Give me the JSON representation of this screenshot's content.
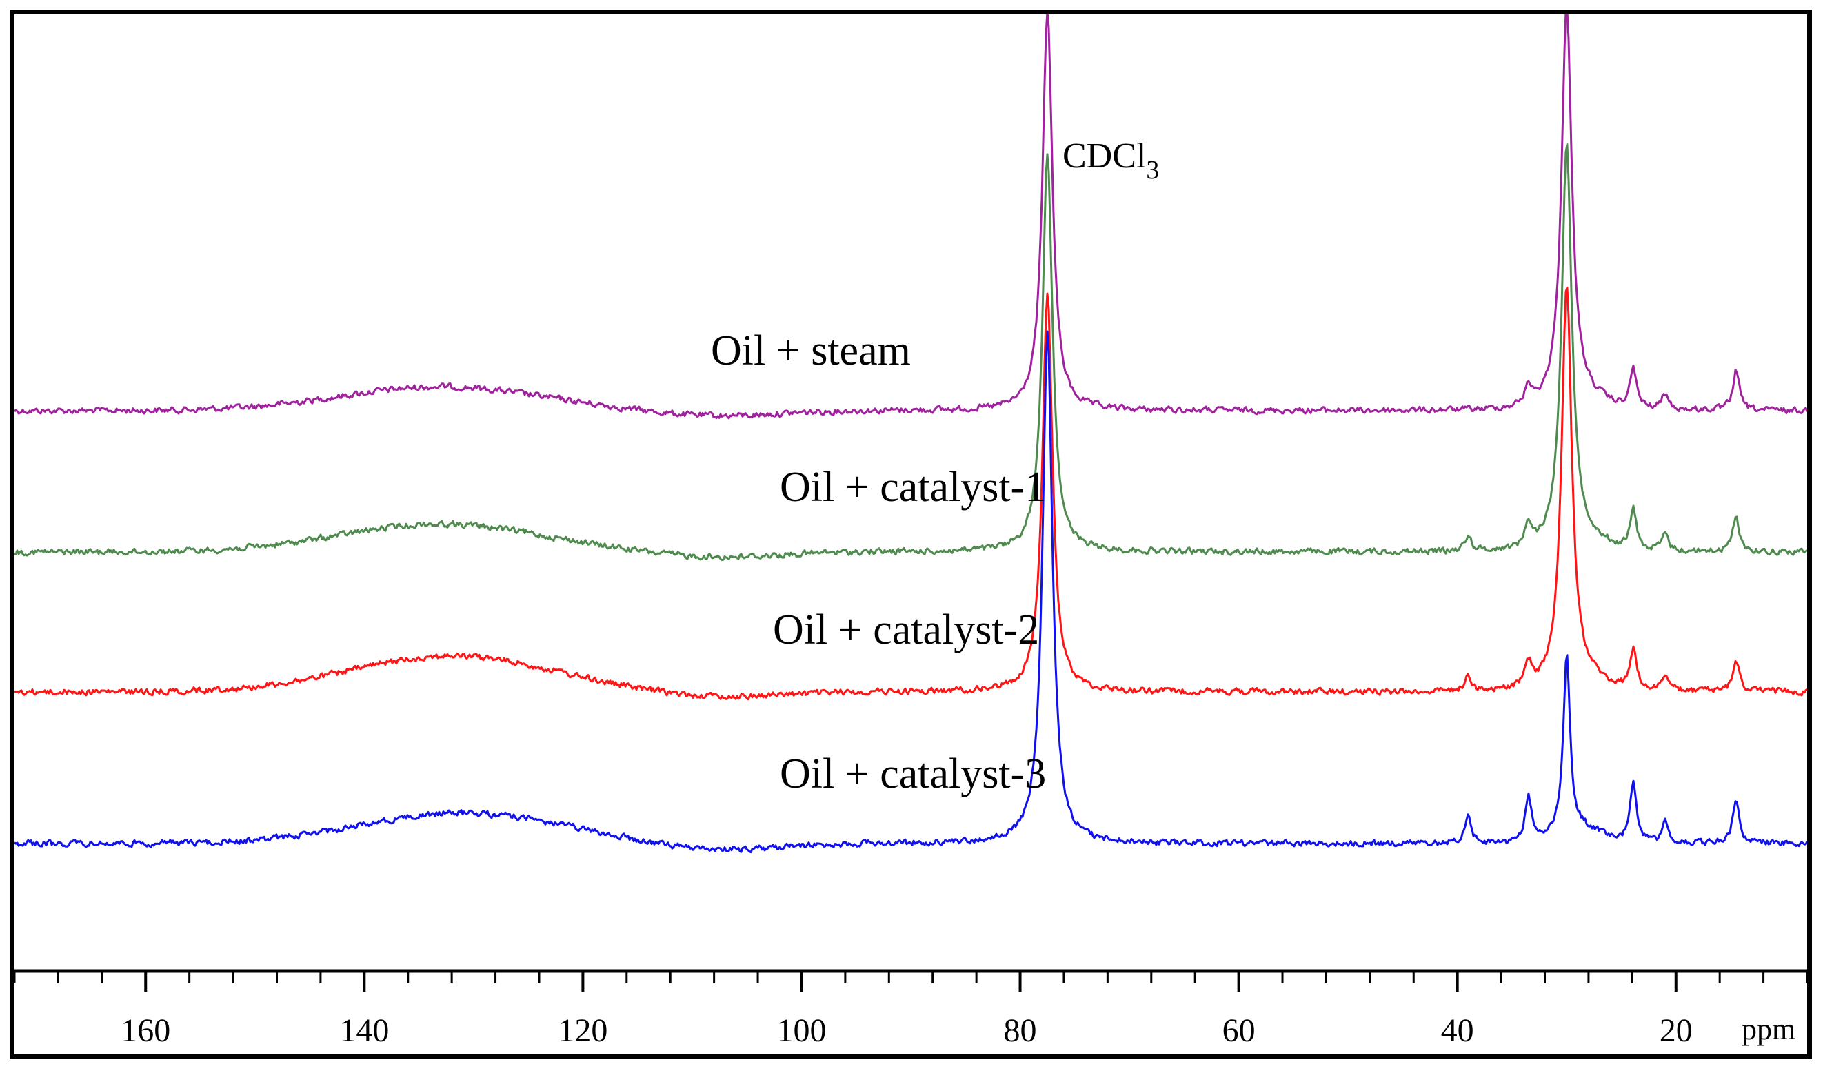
{
  "chart_data": {
    "type": "line",
    "title": "",
    "xlabel": "ppm",
    "ylabel": "",
    "x_reversed": true,
    "xlim": [
      172,
      8
    ],
    "x_ticks": [
      160,
      140,
      120,
      100,
      80,
      60,
      40,
      20
    ],
    "x_tick_labels": [
      "160",
      "140",
      "120",
      "100",
      "80",
      "60",
      "40",
      "20"
    ],
    "grid": false,
    "annotations": [
      {
        "text": "CDCl",
        "subscript": "3",
        "x": 77.2
      }
    ],
    "series": [
      {
        "name": "Oil + steam",
        "color": "#a0229e",
        "baseline": 0,
        "peaks": [
          {
            "ppm": 77.5,
            "height": 100
          },
          {
            "ppm": 30.0,
            "height": 100
          },
          {
            "ppm": 33.5,
            "height": 5
          },
          {
            "ppm": 23.9,
            "height": 10
          },
          {
            "ppm": 21.0,
            "height": 4
          },
          {
            "ppm": 14.5,
            "height": 10
          }
        ],
        "broad_hump": {
          "center_ppm": 133,
          "height": 6
        }
      },
      {
        "name": "Oil + catalyst-1",
        "color": "#4f8a4f",
        "baseline": 0,
        "peaks": [
          {
            "ppm": 77.5,
            "height": 100
          },
          {
            "ppm": 30.0,
            "height": 100
          },
          {
            "ppm": 33.5,
            "height": 6
          },
          {
            "ppm": 39.0,
            "height": 4
          },
          {
            "ppm": 23.9,
            "height": 10
          },
          {
            "ppm": 21.0,
            "height": 4
          },
          {
            "ppm": 14.5,
            "height": 9
          }
        ],
        "broad_hump": {
          "center_ppm": 133,
          "height": 7
        }
      },
      {
        "name": "Oil + catalyst-2",
        "color": "#ff1515",
        "baseline": 0,
        "peaks": [
          {
            "ppm": 77.5,
            "height": 100
          },
          {
            "ppm": 30.0,
            "height": 100
          },
          {
            "ppm": 33.5,
            "height": 6
          },
          {
            "ppm": 39.0,
            "height": 4
          },
          {
            "ppm": 23.9,
            "height": 10
          },
          {
            "ppm": 21.0,
            "height": 4
          },
          {
            "ppm": 14.5,
            "height": 8
          }
        ],
        "broad_hump": {
          "center_ppm": 132,
          "height": 9
        }
      },
      {
        "name": "Oil + catalyst-3",
        "color": "#1111ee",
        "baseline": 0,
        "peaks": [
          {
            "ppm": 77.5,
            "height": 100
          },
          {
            "ppm": 30.0,
            "height": 35
          },
          {
            "ppm": 33.5,
            "height": 9
          },
          {
            "ppm": 39.0,
            "height": 5
          },
          {
            "ppm": 23.9,
            "height": 12
          },
          {
            "ppm": 21.0,
            "height": 4
          },
          {
            "ppm": 14.5,
            "height": 9
          }
        ],
        "broad_hump": {
          "center_ppm": 131,
          "height": 6
        }
      }
    ]
  }
}
